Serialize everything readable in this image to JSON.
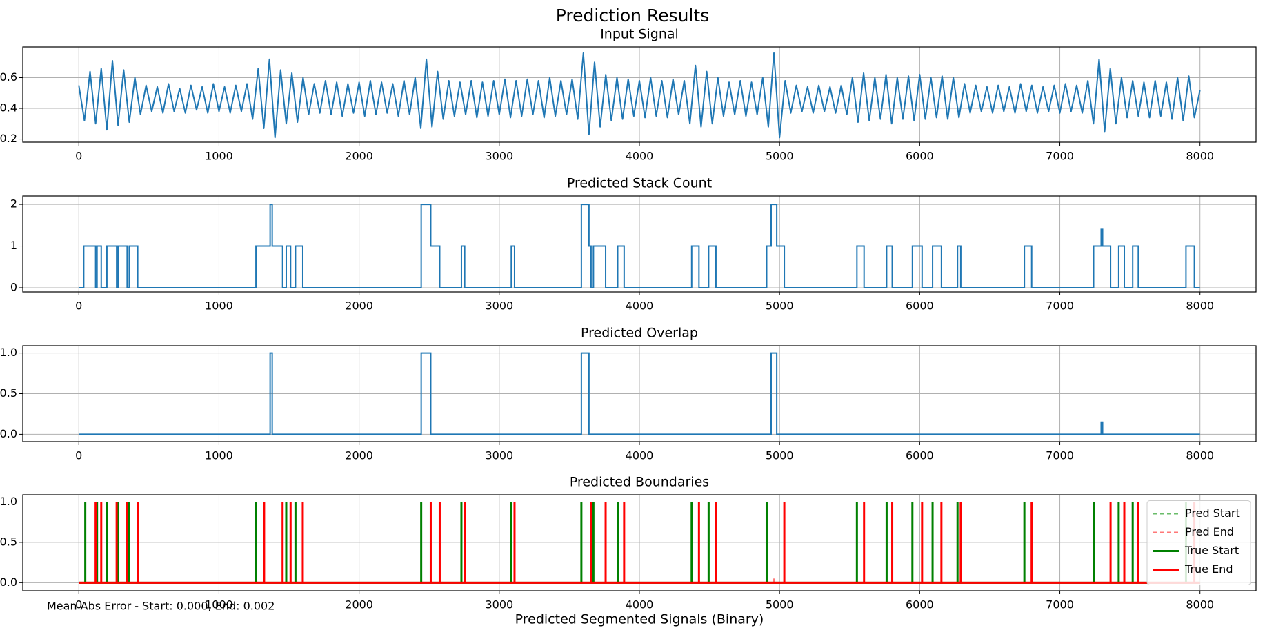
{
  "title": "Prediction Results",
  "annotation": "Mean Abs Error - Start: 0.000, End: 0.002",
  "next_title": "Predicted Segmented Signals (Binary)",
  "chart_data": [
    {
      "type": "line",
      "title": "Input Signal",
      "color": "#1f77b4",
      "grid": true,
      "xlim": [
        -400,
        8400
      ],
      "xticks": [
        0,
        1000,
        2000,
        3000,
        4000,
        5000,
        6000,
        7000,
        8000
      ],
      "ylim": [
        0.18,
        0.8
      ],
      "yticks": [
        0.2,
        0.4,
        0.6
      ],
      "x": [
        0,
        40,
        80,
        120,
        160,
        200,
        240,
        280,
        320,
        360,
        400,
        440,
        480,
        520,
        560,
        600,
        640,
        680,
        720,
        760,
        800,
        840,
        880,
        920,
        960,
        1000,
        1040,
        1080,
        1120,
        1160,
        1200,
        1240,
        1280,
        1320,
        1360,
        1400,
        1440,
        1480,
        1520,
        1560,
        1600,
        1640,
        1680,
        1720,
        1760,
        1800,
        1840,
        1880,
        1920,
        1960,
        2000,
        2040,
        2080,
        2120,
        2160,
        2200,
        2240,
        2280,
        2320,
        2360,
        2400,
        2440,
        2480,
        2520,
        2560,
        2600,
        2640,
        2680,
        2720,
        2760,
        2800,
        2840,
        2880,
        2920,
        2960,
        3000,
        3040,
        3080,
        3120,
        3160,
        3200,
        3240,
        3280,
        3320,
        3360,
        3400,
        3440,
        3480,
        3520,
        3560,
        3600,
        3640,
        3680,
        3720,
        3760,
        3800,
        3840,
        3880,
        3920,
        3960,
        4000,
        4040,
        4080,
        4120,
        4160,
        4200,
        4240,
        4280,
        4320,
        4360,
        4400,
        4440,
        4480,
        4520,
        4560,
        4600,
        4640,
        4680,
        4720,
        4760,
        4800,
        4840,
        4880,
        4920,
        4960,
        5000,
        5040,
        5080,
        5120,
        5160,
        5200,
        5240,
        5280,
        5320,
        5360,
        5400,
        5440,
        5480,
        5520,
        5560,
        5600,
        5640,
        5680,
        5720,
        5760,
        5800,
        5840,
        5880,
        5920,
        5960,
        6000,
        6040,
        6080,
        6120,
        6160,
        6200,
        6240,
        6280,
        6320,
        6360,
        6400,
        6440,
        6480,
        6520,
        6560,
        6600,
        6640,
        6680,
        6720,
        6760,
        6800,
        6840,
        6880,
        6920,
        6960,
        7000,
        7040,
        7080,
        7120,
        7160,
        7200,
        7240,
        7280,
        7320,
        7360,
        7400,
        7440,
        7480,
        7520,
        7560,
        7600,
        7640,
        7680,
        7720,
        7760,
        7800,
        7840,
        7880,
        7920,
        7960,
        8000
      ],
      "values": [
        0.55,
        0.32,
        0.64,
        0.3,
        0.66,
        0.26,
        0.71,
        0.29,
        0.65,
        0.31,
        0.6,
        0.36,
        0.55,
        0.38,
        0.54,
        0.37,
        0.56,
        0.38,
        0.53,
        0.37,
        0.55,
        0.39,
        0.54,
        0.37,
        0.56,
        0.38,
        0.54,
        0.37,
        0.55,
        0.38,
        0.56,
        0.33,
        0.66,
        0.27,
        0.72,
        0.21,
        0.65,
        0.3,
        0.63,
        0.31,
        0.6,
        0.36,
        0.56,
        0.37,
        0.58,
        0.36,
        0.57,
        0.35,
        0.56,
        0.37,
        0.57,
        0.35,
        0.58,
        0.36,
        0.57,
        0.37,
        0.56,
        0.35,
        0.58,
        0.36,
        0.6,
        0.27,
        0.72,
        0.28,
        0.64,
        0.33,
        0.58,
        0.35,
        0.57,
        0.36,
        0.58,
        0.34,
        0.57,
        0.35,
        0.58,
        0.36,
        0.59,
        0.34,
        0.58,
        0.35,
        0.59,
        0.36,
        0.58,
        0.34,
        0.6,
        0.35,
        0.58,
        0.36,
        0.59,
        0.33,
        0.76,
        0.23,
        0.7,
        0.28,
        0.62,
        0.32,
        0.6,
        0.33,
        0.59,
        0.35,
        0.58,
        0.34,
        0.6,
        0.35,
        0.58,
        0.34,
        0.59,
        0.36,
        0.58,
        0.3,
        0.68,
        0.28,
        0.64,
        0.3,
        0.6,
        0.35,
        0.57,
        0.36,
        0.58,
        0.35,
        0.57,
        0.36,
        0.6,
        0.28,
        0.76,
        0.21,
        0.58,
        0.37,
        0.55,
        0.38,
        0.54,
        0.37,
        0.55,
        0.38,
        0.54,
        0.37,
        0.55,
        0.36,
        0.6,
        0.31,
        0.63,
        0.32,
        0.6,
        0.33,
        0.62,
        0.3,
        0.6,
        0.33,
        0.61,
        0.32,
        0.62,
        0.33,
        0.6,
        0.34,
        0.61,
        0.33,
        0.6,
        0.34,
        0.56,
        0.37,
        0.55,
        0.38,
        0.54,
        0.37,
        0.55,
        0.38,
        0.54,
        0.37,
        0.56,
        0.38,
        0.55,
        0.37,
        0.54,
        0.38,
        0.55,
        0.37,
        0.56,
        0.38,
        0.55,
        0.37,
        0.58,
        0.3,
        0.72,
        0.25,
        0.66,
        0.3,
        0.6,
        0.34,
        0.58,
        0.35,
        0.57,
        0.34,
        0.58,
        0.35,
        0.57,
        0.33,
        0.6,
        0.32,
        0.61,
        0.34,
        0.52
      ]
    },
    {
      "type": "step",
      "title": "Predicted Stack Count",
      "color": "#1f77b4",
      "grid": true,
      "xlim": [
        -400,
        8400
      ],
      "xticks": [
        0,
        1000,
        2000,
        3000,
        4000,
        5000,
        6000,
        7000,
        8000
      ],
      "ylim": [
        -0.1,
        2.2
      ],
      "yticks": [
        0,
        1,
        2
      ],
      "x": [
        0,
        35,
        120,
        130,
        160,
        200,
        270,
        280,
        345,
        360,
        420,
        1264,
        1365,
        1380,
        1454,
        1480,
        1511,
        1546,
        1598,
        2443,
        2511,
        2575,
        2730,
        2753,
        3086,
        3109,
        3586,
        3640,
        3655,
        3672,
        3759,
        3845,
        3891,
        4373,
        4425,
        4494,
        4546,
        4908,
        4940,
        4980,
        5034,
        5552,
        5603,
        5764,
        5804,
        5948,
        6017,
        6092,
        6155,
        6270,
        6293,
        6747,
        6799,
        7241,
        7295,
        7305,
        7362,
        7420,
        7460,
        7520,
        7560,
        7900,
        7960,
        8000
      ],
      "values": [
        0,
        1,
        0,
        1,
        0,
        1,
        0,
        1,
        0,
        1,
        0,
        1,
        2,
        1,
        0,
        1,
        0,
        1,
        0,
        2,
        1,
        0,
        1,
        0,
        1,
        0,
        2,
        1,
        0,
        1,
        0,
        1,
        0,
        1,
        0,
        1,
        0,
        1,
        2,
        1,
        0,
        1,
        0,
        1,
        0,
        1,
        0,
        1,
        0,
        1,
        0,
        1,
        0,
        1,
        1.4,
        1,
        0,
        1,
        0,
        1,
        0,
        1,
        0,
        0
      ]
    },
    {
      "type": "step",
      "title": "Predicted Overlap",
      "color": "#1f77b4",
      "grid": true,
      "xlim": [
        -400,
        8400
      ],
      "xticks": [
        0,
        1000,
        2000,
        3000,
        4000,
        5000,
        6000,
        7000,
        8000
      ],
      "ylim": [
        -0.09,
        1.09
      ],
      "yticks": [
        {
          "value": 0,
          "label": "0.0"
        },
        0.5,
        {
          "value": 1,
          "label": "1.0"
        }
      ],
      "x": [
        0,
        1365,
        1380,
        2443,
        2511,
        3586,
        3640,
        4940,
        4980,
        7295,
        7305,
        8000
      ],
      "values": [
        0,
        1,
        0,
        1,
        0,
        1,
        0,
        1,
        0,
        0.15,
        0,
        0
      ]
    },
    {
      "type": "stem",
      "title": "Predicted Boundaries",
      "grid": true,
      "legend": "center right",
      "xlim": [
        -400,
        8400
      ],
      "xticks": [
        0,
        1000,
        2000,
        3000,
        4000,
        5000,
        6000,
        7000,
        8000
      ],
      "ylim": [
        -0.1,
        1.09
      ],
      "yticks": [
        {
          "value": 0,
          "label": "0.0"
        },
        0.5,
        {
          "value": 1,
          "label": "1.0"
        }
      ],
      "series": [
        {
          "name": "Pred Start",
          "color": "#2ca02c",
          "dashed": true,
          "x": [
            0,
            46,
            130,
            200,
            280,
            360,
            1264,
            1480,
            1546,
            2443,
            2730,
            3086,
            3586,
            3672,
            3845,
            4373,
            4494,
            4908,
            5552,
            5764,
            5948,
            6092,
            6270,
            6747,
            7241,
            7420,
            7520,
            7900,
            8000
          ],
          "values": [
            0,
            1,
            1,
            1,
            1,
            1,
            1,
            1,
            1,
            1,
            1,
            1,
            1,
            1,
            1,
            1,
            1,
            1,
            1,
            1,
            1,
            1,
            1,
            1,
            1,
            1,
            1,
            1,
            0
          ]
        },
        {
          "name": "Pred End",
          "color": "#ff4040",
          "dashed": true,
          "x": [
            0,
            120,
            160,
            270,
            345,
            420,
            1322,
            1454,
            1511,
            1598,
            2511,
            2575,
            2753,
            3109,
            3655,
            3759,
            3891,
            4425,
            4546,
            4960,
            5034,
            5603,
            5804,
            6017,
            6155,
            6293,
            6799,
            7362,
            7460,
            7560,
            7960,
            8000
          ],
          "values": [
            0,
            1,
            1,
            1,
            1,
            1,
            1,
            1,
            1,
            1,
            1,
            1,
            1,
            1,
            1,
            1,
            1,
            1,
            1,
            0.08,
            1,
            1,
            1,
            1,
            1,
            1,
            1,
            1,
            1,
            1,
            1,
            0
          ]
        },
        {
          "name": "True Start",
          "color": "#008000",
          "dashed": false,
          "x": [
            0,
            46,
            130,
            200,
            280,
            360,
            1264,
            1480,
            1546,
            2443,
            2730,
            3086,
            3586,
            3672,
            3845,
            4373,
            4494,
            4908,
            5552,
            5764,
            5948,
            6092,
            6270,
            6747,
            7241,
            7420,
            7520,
            7900,
            8000
          ],
          "values": [
            0,
            1,
            1,
            1,
            1,
            1,
            1,
            1,
            1,
            1,
            1,
            1,
            1,
            1,
            1,
            1,
            1,
            1,
            1,
            1,
            1,
            1,
            1,
            1,
            1,
            1,
            1,
            1,
            0
          ]
        },
        {
          "name": "True End",
          "color": "#ff0000",
          "dashed": false,
          "x": [
            0,
            120,
            160,
            270,
            345,
            420,
            1322,
            1454,
            1511,
            1598,
            2511,
            2575,
            2753,
            3109,
            3655,
            3759,
            3891,
            4425,
            4546,
            5034,
            5603,
            5804,
            6017,
            6155,
            6293,
            6799,
            7362,
            7460,
            7560,
            7960,
            8000
          ],
          "values": [
            0,
            1,
            1,
            1,
            1,
            1,
            1,
            1,
            1,
            1,
            1,
            1,
            1,
            1,
            1,
            1,
            1,
            1,
            1,
            1,
            1,
            1,
            1,
            1,
            1,
            1,
            1,
            1,
            1,
            1,
            0
          ]
        }
      ]
    }
  ]
}
